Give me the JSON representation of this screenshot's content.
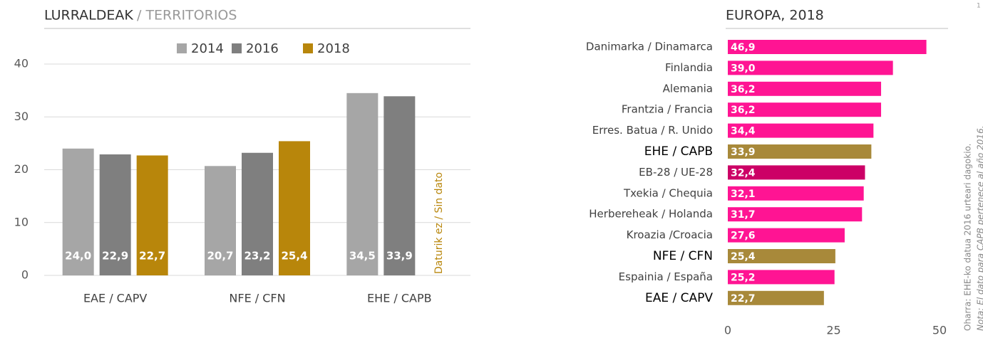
{
  "chart_data": [
    {
      "type": "bar",
      "title": "LURRALDEAK",
      "subtitle": "/ TERRITORIOS",
      "categories": [
        "EAE / CAPV",
        "NFE / CFN",
        "EHE / CAPB"
      ],
      "series": [
        {
          "name": "2014",
          "color": "#a6a6a6",
          "values": [
            24.0,
            20.7,
            34.5
          ],
          "value_labels": [
            "24,0",
            "20,7",
            "34,5"
          ]
        },
        {
          "name": "2016",
          "color": "#7f7f7f",
          "values": [
            22.9,
            23.2,
            33.9
          ],
          "value_labels": [
            "22,9",
            "23,2",
            "33,9"
          ]
        },
        {
          "name": "2018",
          "color": "#b8860b",
          "values": [
            22.7,
            25.4,
            null
          ],
          "value_labels": [
            "22,7",
            "25,4",
            null
          ]
        }
      ],
      "annotation": "Daturik ez / Sin dato",
      "ylim": [
        0,
        40
      ],
      "yticks": [
        0,
        10,
        20,
        30,
        40
      ],
      "grid": true,
      "legend": "top"
    },
    {
      "type": "hbar",
      "title": "EUROPA, 2018",
      "categories": [
        "Danimarka / Dinamarca",
        "Finlandia",
        "Alemania",
        "Frantzia / Francia",
        "Erres. Batua / R. Unido",
        "EHE / CAPB",
        "EB-28 / UE-28",
        "Txekia / Chequia",
        "Herbereheak / Holanda",
        "Kroazia /Croacia",
        "NFE / CFN",
        "Espainia / España",
        "EAE / CAPV"
      ],
      "values": [
        46.9,
        39.0,
        36.2,
        36.2,
        34.4,
        33.9,
        32.4,
        32.1,
        31.7,
        27.6,
        25.4,
        25.2,
        22.7
      ],
      "value_labels": [
        "46,9",
        "39,0",
        "36,2",
        "36,2",
        "34,4",
        "33,9",
        "32,4",
        "32,1",
        "31,7",
        "27,6",
        "25,4",
        "25,2",
        "22,7"
      ],
      "colors": [
        "#ff1493",
        "#ff1493",
        "#ff1493",
        "#ff1493",
        "#ff1493",
        "#a8893a",
        "#cc0066",
        "#ff1493",
        "#ff1493",
        "#ff1493",
        "#a8893a",
        "#ff1493",
        "#a8893a"
      ],
      "highlight": [
        5,
        10,
        12
      ],
      "xlim": [
        0,
        50
      ],
      "xticks": [
        0,
        25,
        50
      ]
    }
  ],
  "notes": [
    "Oharra: EHE-ko datua 2016 urteari dagokio.",
    "Nota: El dato para CAPB pertenece al año 2016."
  ],
  "page_number": "1"
}
